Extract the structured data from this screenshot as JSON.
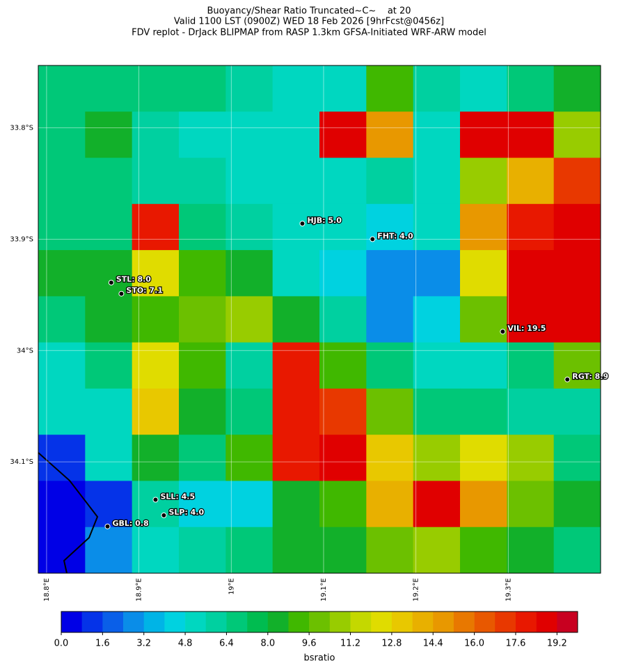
{
  "chart_data": {
    "type": "raster-map",
    "title_lines": [
      "Buoyancy/Shear Ratio Truncated~C~    at 20",
      "Valid 1100 LST (0900Z) WED 18 Feb 2026 [9hrFcst@0456z]",
      "FDV replot - DrJack BLIPMAP from RASP 1.3km GFSA-Initiated WRF-ARW model"
    ],
    "xlim": [
      18.791,
      19.4
    ],
    "ylim": [
      -34.2,
      -33.744
    ],
    "xticks": [
      {
        "value": 18.8,
        "label": "18.8°E"
      },
      {
        "value": 18.9,
        "label": "18.9°E"
      },
      {
        "value": 19.0,
        "label": "19°E"
      },
      {
        "value": 19.1,
        "label": "19.1°E"
      },
      {
        "value": 19.2,
        "label": "19.2°E"
      },
      {
        "value": 19.3,
        "label": "19.3°E"
      }
    ],
    "yticks": [
      {
        "value": -33.8,
        "label": "33.8°S"
      },
      {
        "value": -33.9,
        "label": "33.9°S"
      },
      {
        "value": -34.0,
        "label": "34°S"
      },
      {
        "value": -34.1,
        "label": "34.1°S"
      }
    ],
    "grid": true,
    "field": [
      [
        7,
        7,
        7,
        6.5,
        6,
        5,
        5,
        9,
        6,
        5,
        7,
        8
      ],
      [
        7,
        8,
        6,
        5,
        5,
        5,
        19,
        15,
        5,
        19,
        19,
        11
      ],
      [
        7,
        7,
        6,
        6,
        5,
        5,
        5,
        6,
        5,
        11,
        14,
        17
      ],
      [
        7,
        7,
        18,
        7,
        6,
        5,
        5,
        4,
        5,
        15,
        18,
        19
      ],
      [
        8,
        8,
        12,
        9,
        8,
        5,
        4,
        3,
        3,
        12,
        19,
        19
      ],
      [
        7,
        8,
        9,
        10,
        11,
        8,
        6,
        3,
        4,
        10,
        19,
        19
      ],
      [
        5,
        7,
        12,
        9,
        6,
        18,
        9,
        7,
        5,
        5,
        7,
        10
      ],
      [
        5,
        5,
        13,
        8,
        7,
        18,
        17,
        10,
        7,
        7,
        6,
        6
      ],
      [
        1,
        5,
        8,
        7,
        9,
        18,
        19,
        13,
        11,
        12,
        11,
        7
      ],
      [
        0.5,
        1,
        6,
        4,
        4,
        8,
        9,
        14,
        19,
        15,
        10,
        8
      ],
      [
        0.5,
        3,
        5,
        6,
        7,
        8,
        8,
        10,
        11,
        9,
        8,
        7
      ]
    ],
    "stations": [
      {
        "label": "HJB: 5.0",
        "lon": 19.077,
        "lat": -33.886
      },
      {
        "label": "FHT: 4.0",
        "lon": 19.153,
        "lat": -33.9
      },
      {
        "label": "STL: 8.0",
        "lon": 18.87,
        "lat": -33.939
      },
      {
        "label": "STO: 7.1",
        "lon": 18.881,
        "lat": -33.949
      },
      {
        "label": "VIL: 19.5",
        "lon": 19.294,
        "lat": -33.983
      },
      {
        "label": "RGT: 8.9",
        "lon": 19.364,
        "lat": -34.026
      },
      {
        "label": "SLL: 4.5",
        "lon": 18.918,
        "lat": -34.134
      },
      {
        "label": "SLP: 4.0",
        "lon": 18.927,
        "lat": -34.148
      },
      {
        "label": "GBL: 0.8",
        "lon": 18.866,
        "lat": -34.158
      }
    ],
    "colorbar": {
      "label": "bsratio",
      "clim": [
        0,
        20
      ],
      "colors": [
        "#0000e6",
        "#0533e8",
        "#0a5fe8",
        "#0a8de8",
        "#00b4e6",
        "#00d2e0",
        "#00d7c0",
        "#00d0a0",
        "#00c878",
        "#00bc50",
        "#12b02a",
        "#40b800",
        "#6cc000",
        "#98cc00",
        "#c4d800",
        "#e0dc00",
        "#e8c800",
        "#e8b000",
        "#e89800",
        "#e87800",
        "#e85800",
        "#e83800",
        "#e81800",
        "#e00000",
        "#c80020"
      ],
      "ticks": [
        {
          "value": 0,
          "label": "0.0"
        },
        {
          "value": 1.6,
          "label": "1.6"
        },
        {
          "value": 3.2,
          "label": "3.2"
        },
        {
          "value": 4.8,
          "label": "4.8"
        },
        {
          "value": 6.4,
          "label": "6.4"
        },
        {
          "value": 8.0,
          "label": "8.0"
        },
        {
          "value": 9.6,
          "label": "9.6"
        },
        {
          "value": 11.2,
          "label": "11.2"
        },
        {
          "value": 12.8,
          "label": "12.8"
        },
        {
          "value": 14.4,
          "label": "14.4"
        },
        {
          "value": 16.0,
          "label": "16.0"
        },
        {
          "value": 17.6,
          "label": "17.6"
        },
        {
          "value": 19.2,
          "label": "19.2"
        }
      ]
    }
  }
}
